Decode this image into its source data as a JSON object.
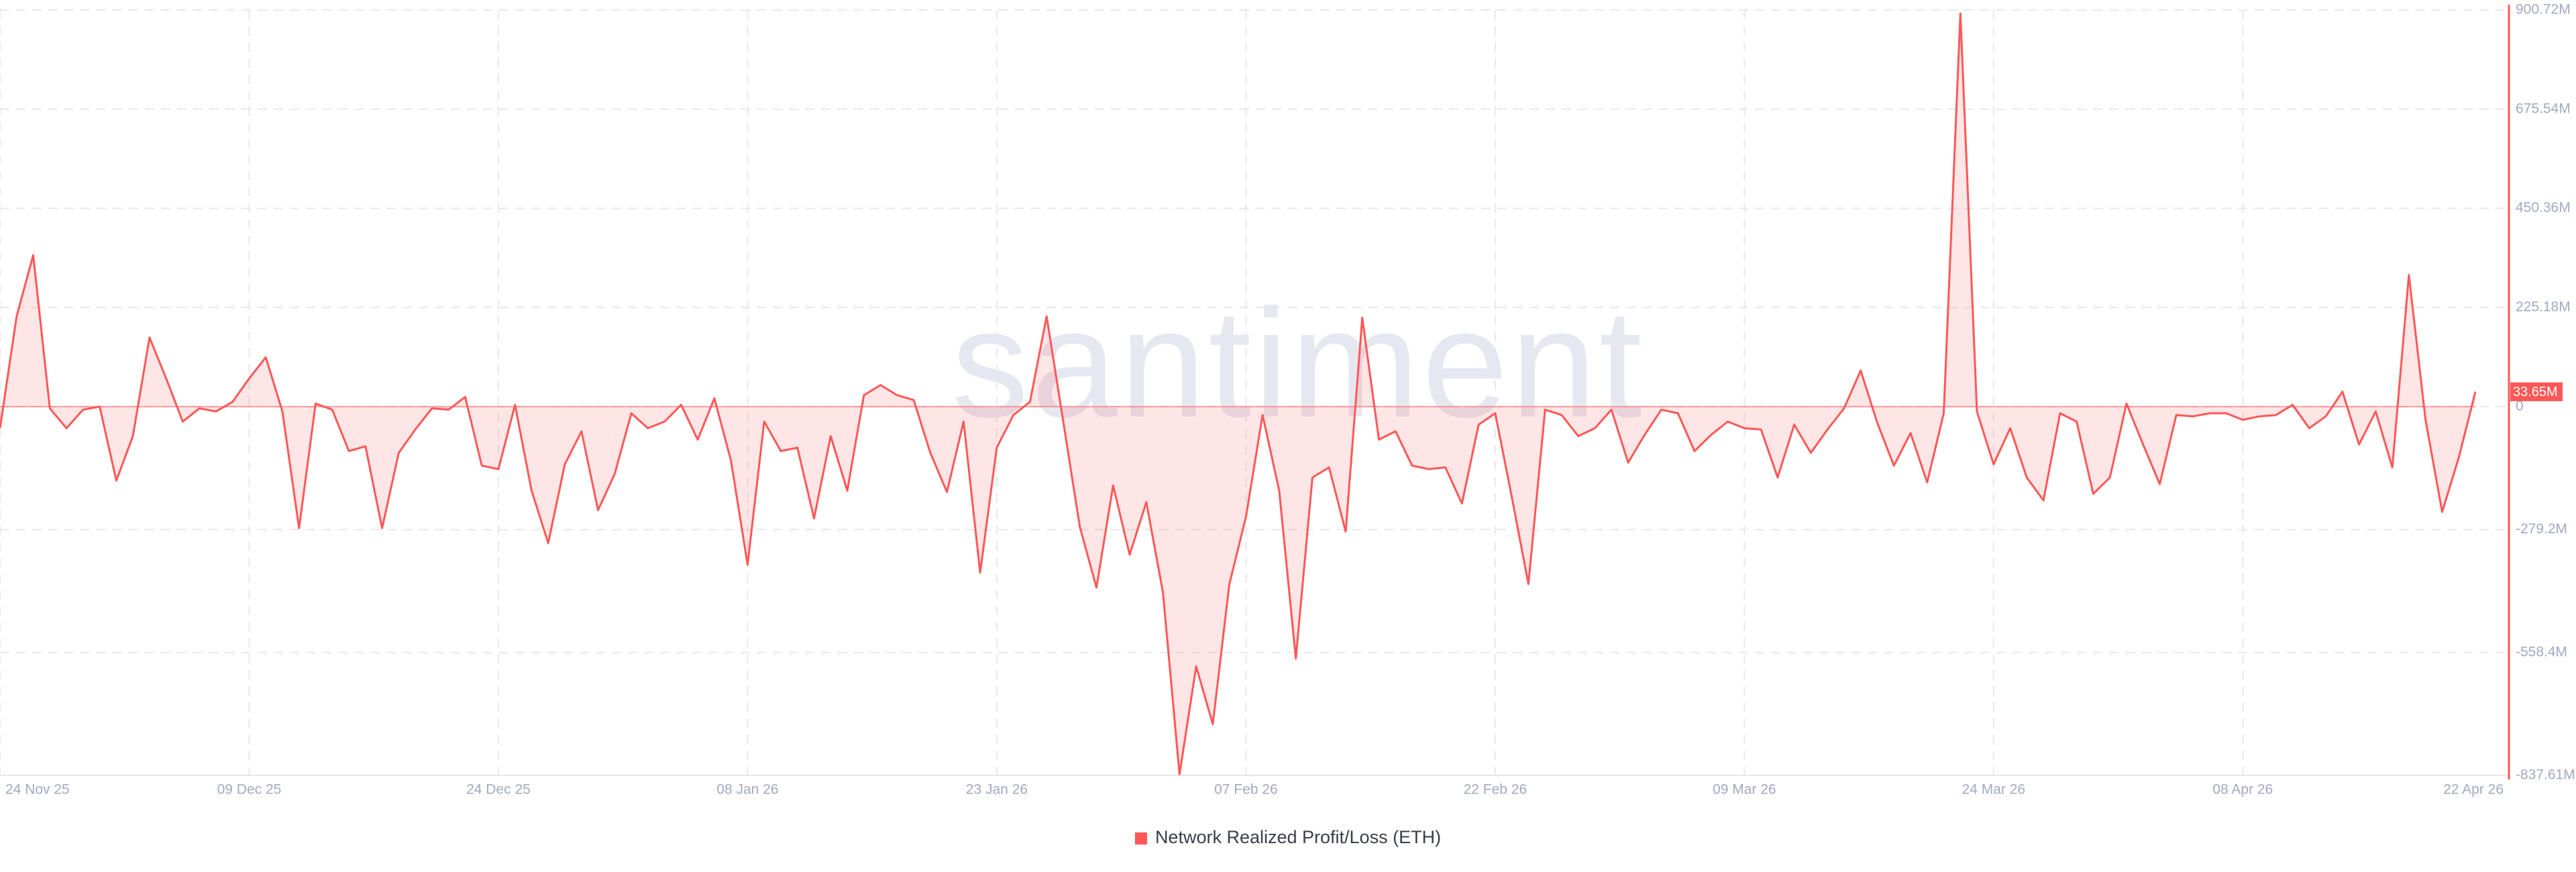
{
  "chart_data": {
    "type": "area",
    "watermark": "santiment",
    "x": [
      "24 Nov 25",
      null,
      null,
      null,
      null,
      null,
      null,
      null,
      null,
      null,
      null,
      null,
      null,
      null,
      null,
      "09 Dec 25",
      null,
      null,
      null,
      null,
      null,
      null,
      null,
      null,
      null,
      null,
      null,
      null,
      null,
      null,
      "24 Dec 25",
      null,
      null,
      null,
      null,
      null,
      null,
      null,
      null,
      null,
      null,
      null,
      null,
      null,
      null,
      "08 Jan 26",
      null,
      null,
      null,
      null,
      null,
      null,
      null,
      null,
      null,
      null,
      null,
      null,
      null,
      null,
      "23 Jan 26",
      null,
      null,
      null,
      null,
      null,
      null,
      null,
      null,
      null,
      null,
      null,
      null,
      null,
      null,
      "07 Feb 26",
      null,
      null,
      null,
      null,
      null,
      null,
      null,
      null,
      null,
      null,
      null,
      null,
      null,
      null,
      "22 Feb 26",
      null,
      null,
      null,
      null,
      null,
      null,
      null,
      null,
      null,
      null,
      null,
      null,
      null,
      null,
      "09 Mar 26",
      null,
      null,
      null,
      null,
      null,
      null,
      null,
      null,
      null,
      null,
      null,
      null,
      null,
      null,
      "24 Mar 26",
      null,
      null,
      null,
      null,
      null,
      null,
      null,
      null,
      null,
      null,
      null,
      null,
      null,
      null,
      "08 Apr 26",
      null,
      null,
      null,
      null,
      null,
      null,
      null,
      null,
      null,
      null,
      null,
      null,
      null,
      "22 Apr 26"
    ],
    "series": [
      {
        "name": "Network Realized Profit/Loss (ETH)",
        "color": "#ff5757",
        "values": [
          -49,
          205,
          344,
          -4,
          -49,
          -7,
          0,
          -168,
          -67,
          157,
          64,
          -34,
          -4,
          -11,
          11,
          64,
          112,
          -11,
          -276,
          7,
          -7,
          -101,
          -90,
          -276,
          -105,
          -52,
          -4,
          -7,
          22,
          -134,
          -142,
          4,
          -191,
          -310,
          -131,
          -56,
          -235,
          -153,
          -15,
          -49,
          -34,
          4,
          -75,
          19,
          -123,
          -359,
          -34,
          -101,
          -93,
          -254,
          -67,
          -191,
          26,
          49,
          26,
          15,
          -105,
          -194,
          -34,
          -377,
          -93,
          -19,
          11,
          205,
          -34,
          -273,
          -411,
          -179,
          -336,
          -217,
          -422,
          -835,
          -590,
          -721,
          -403,
          -250,
          -19,
          -191,
          -572,
          -161,
          -138,
          -284,
          202,
          -75,
          -56,
          -134,
          -142,
          -138,
          -220,
          -41,
          -15,
          -205,
          -403,
          -7,
          -19,
          -67,
          -49,
          -7,
          -127,
          -64,
          -7,
          -15,
          -101,
          -64,
          -34,
          -49,
          -52,
          -161,
          -41,
          -105,
          -52,
          -4,
          82,
          -37,
          -134,
          -60,
          -172,
          -15,
          893,
          -11,
          -131,
          -49,
          -161,
          -213,
          -15,
          -34,
          -198,
          -161,
          7,
          -86,
          -176,
          -19,
          -22,
          -15,
          -15,
          -30,
          -22,
          -19,
          4,
          -49,
          -22,
          34,
          -86,
          -11,
          -138,
          299,
          -30,
          -239,
          -116,
          33.65
        ]
      }
    ],
    "current_value": {
      "value": 33.65,
      "label": "33.65M"
    },
    "ylim": [
      -837.61,
      900.72
    ],
    "yticks": [
      {
        "value": 900.72,
        "label": "900.72M"
      },
      {
        "value": 675.54,
        "label": "675.54M"
      },
      {
        "value": 450.36,
        "label": "450.36M"
      },
      {
        "value": 225.18,
        "label": "225.18M"
      },
      0,
      {
        "value": -279.2,
        "label": "-279.2M"
      },
      {
        "value": -558.4,
        "label": "-558.4M"
      },
      {
        "value": -837.61,
        "label": "-837.61M"
      }
    ],
    "grid": true,
    "legend": "bottom"
  }
}
